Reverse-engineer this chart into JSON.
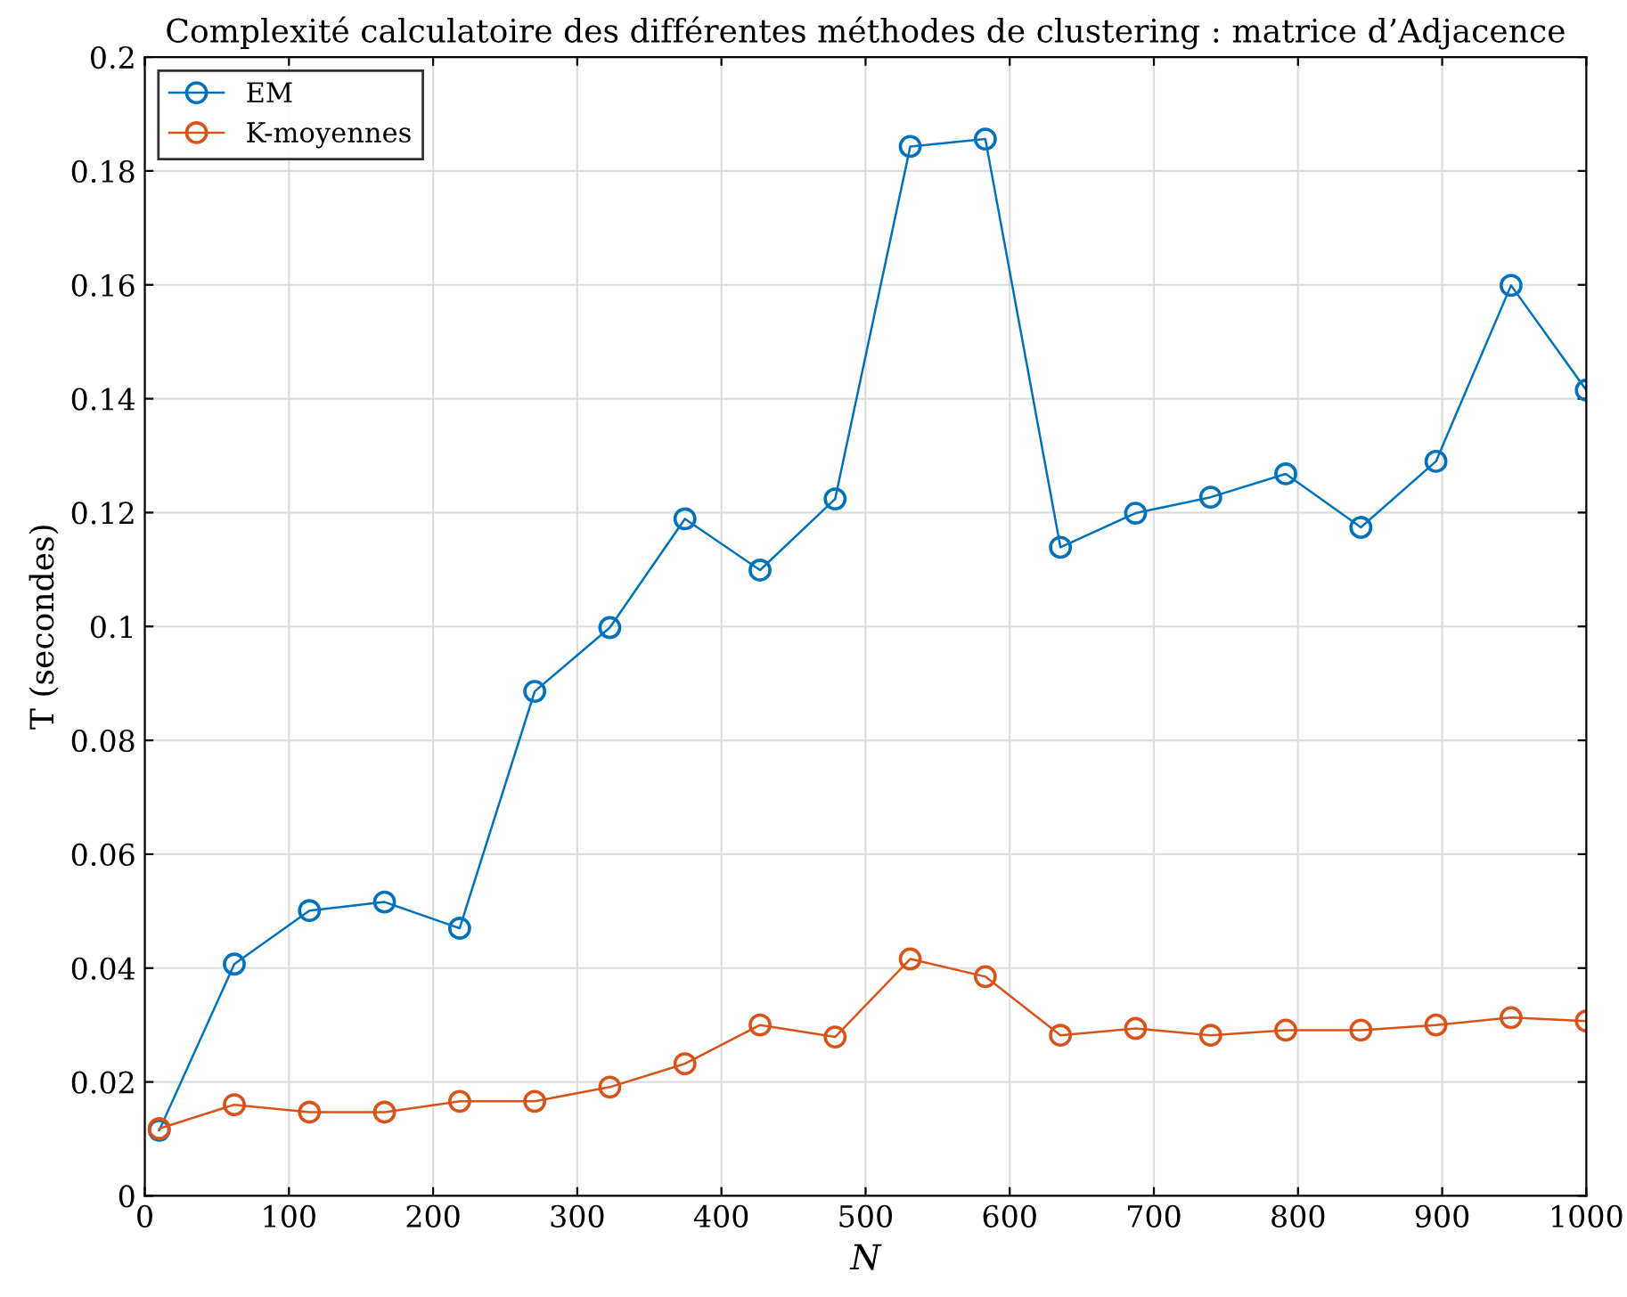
{
  "chart_data": {
    "type": "line",
    "title": "Complexité calculatoire des différentes méthodes de clustering : matrice d’Adjacence",
    "xlabel": "N",
    "ylabel": "T (secondes)",
    "x": [
      10,
      62.1,
      114.2,
      166.3,
      218.4,
      270.5,
      322.6,
      374.7,
      426.8,
      478.9,
      531,
      583.1,
      635.2,
      687.3,
      739.4,
      791.5,
      843.6,
      895.7,
      947.8,
      1000
    ],
    "series": [
      {
        "name": "EM",
        "color": "#0072bd",
        "values": [
          0.0115,
          0.0407,
          0.0501,
          0.0516,
          0.047,
          0.0886,
          0.0998,
          0.1189,
          0.1099,
          0.1224,
          0.1843,
          0.1856,
          0.1139,
          0.1199,
          0.1227,
          0.1268,
          0.1174,
          0.129,
          0.1599,
          0.1415
        ]
      },
      {
        "name": "K-moyennes",
        "color": "#d95319",
        "values": [
          0.0118,
          0.016,
          0.0147,
          0.0147,
          0.0166,
          0.0166,
          0.0191,
          0.0232,
          0.03,
          0.0279,
          0.0416,
          0.0385,
          0.0282,
          0.0294,
          0.0282,
          0.0291,
          0.0291,
          0.03,
          0.0313,
          0.0307
        ]
      }
    ],
    "xlim": [
      0,
      1000
    ],
    "xticks": [
      0,
      100,
      200,
      300,
      400,
      500,
      600,
      700,
      800,
      900,
      1000
    ],
    "ylim": [
      0,
      0.2
    ],
    "yticks": [
      0,
      0.02,
      0.04,
      0.06,
      0.08,
      0.1,
      0.12,
      0.14,
      0.16,
      0.18,
      0.2
    ],
    "grid": true,
    "legend": "top left",
    "marker": "circle",
    "line_style": "solid"
  }
}
